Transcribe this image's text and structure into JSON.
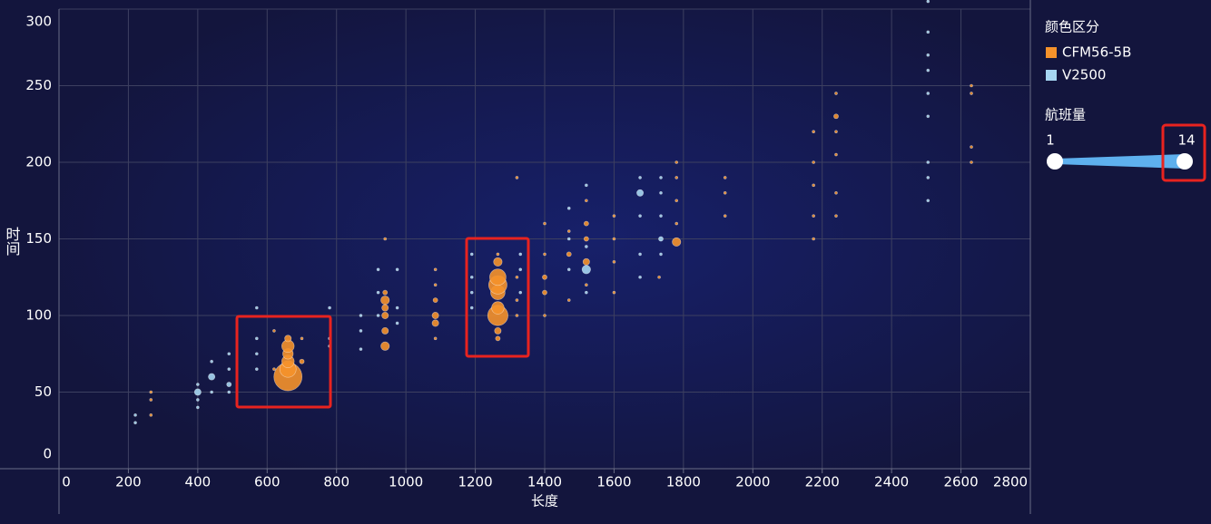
{
  "chart_data": {
    "type": "scatter",
    "x_label": "长度",
    "y_label": "时间",
    "xlim": [
      0,
      2800
    ],
    "xticks": [
      0,
      200,
      400,
      600,
      800,
      1000,
      1200,
      1400,
      1600,
      1800,
      2000,
      2200,
      2400,
      2600,
      2800
    ],
    "ylim": [
      0,
      300
    ],
    "yticks": [
      0,
      50,
      100,
      150,
      200,
      250,
      300
    ],
    "grid": true,
    "legend_title": "颜色区分",
    "visual_map": {
      "title": "航班量",
      "min": 1,
      "max": 14,
      "color": "#5eb0ee"
    },
    "series": [
      {
        "name": "CFM56-5B",
        "color": "#f5922b",
        "x": [
          265,
          265,
          265,
          660,
          660,
          660,
          660,
          660,
          660,
          700,
          700,
          620,
          620,
          940,
          940,
          940,
          940,
          940,
          940,
          940,
          1085,
          1085,
          1085,
          1085,
          1085,
          1085,
          1265,
          1265,
          1265,
          1265,
          1265,
          1265,
          1265,
          1265,
          1265,
          1320,
          1320,
          1320,
          1320,
          1400,
          1400,
          1400,
          1400,
          1400,
          1470,
          1470,
          1470,
          1520,
          1520,
          1520,
          1520,
          1520,
          1600,
          1600,
          1600,
          1600,
          1780,
          1780,
          1780,
          1780,
          1780,
          1730,
          1920,
          1920,
          1920,
          2175,
          2175,
          2175,
          2175,
          2175,
          2240,
          2240,
          2240,
          2240,
          2240,
          2240,
          2630,
          2630,
          2630,
          2630
        ],
        "values": [
          35,
          45,
          50,
          60,
          65,
          70,
          75,
          80,
          85,
          70,
          85,
          90,
          65,
          80,
          90,
          100,
          105,
          110,
          115,
          150,
          95,
          100,
          110,
          120,
          130,
          85,
          85,
          90,
          100,
          105,
          115,
          120,
          125,
          135,
          140,
          100,
          110,
          125,
          190,
          100,
          115,
          125,
          140,
          160,
          110,
          140,
          155,
          120,
          135,
          150,
          160,
          175,
          115,
          135,
          150,
          165,
          148,
          160,
          175,
          190,
          200,
          125,
          165,
          180,
          190,
          150,
          165,
          185,
          200,
          220,
          165,
          180,
          205,
          220,
          230,
          245,
          200,
          210,
          245,
          250
        ],
        "sizes": [
          1,
          1,
          1,
          14,
          8,
          6,
          5,
          6,
          3,
          2,
          1,
          1,
          1,
          4,
          3,
          3,
          3,
          4,
          2,
          1,
          3,
          3,
          2,
          1,
          1,
          1,
          2,
          3,
          10,
          6,
          7,
          9,
          8,
          4,
          1,
          1,
          1,
          1,
          1,
          1,
          2,
          2,
          1,
          1,
          1,
          2,
          1,
          1,
          3,
          2,
          2,
          1,
          1,
          1,
          1,
          1,
          4,
          1,
          1,
          1,
          1,
          1,
          1,
          1,
          1,
          1,
          1,
          1,
          1,
          1,
          1,
          1,
          1,
          1,
          2,
          1,
          1,
          1,
          1,
          1
        ]
      },
      {
        "name": "V2500",
        "color": "#a6d6f2",
        "x": [
          220,
          220,
          400,
          400,
          400,
          400,
          440,
          440,
          440,
          490,
          490,
          490,
          490,
          570,
          570,
          570,
          570,
          780,
          780,
          780,
          870,
          870,
          870,
          920,
          920,
          920,
          975,
          975,
          975,
          1190,
          1190,
          1190,
          1190,
          1330,
          1330,
          1330,
          1470,
          1470,
          1470,
          1520,
          1520,
          1520,
          1520,
          1675,
          1675,
          1675,
          1675,
          1675,
          1735,
          1735,
          1735,
          1735,
          1735,
          2505,
          2505,
          2505,
          2505,
          2505,
          2505,
          2505,
          2505,
          2505
        ],
        "values": [
          30,
          35,
          40,
          45,
          50,
          55,
          50,
          60,
          70,
          50,
          55,
          65,
          75,
          65,
          75,
          85,
          105,
          80,
          85,
          105,
          78,
          90,
          100,
          100,
          115,
          130,
          95,
          105,
          130,
          105,
          115,
          125,
          140,
          115,
          130,
          140,
          130,
          150,
          170,
          115,
          130,
          145,
          185,
          125,
          140,
          165,
          180,
          190,
          140,
          150,
          165,
          180,
          190,
          175,
          190,
          200,
          230,
          245,
          260,
          270,
          285,
          305
        ],
        "sizes": [
          1,
          1,
          1,
          1,
          3,
          1,
          1,
          3,
          1,
          1,
          2,
          1,
          1,
          1,
          1,
          1,
          1,
          1,
          1,
          1,
          1,
          1,
          1,
          1,
          1,
          1,
          1,
          1,
          1,
          1,
          1,
          1,
          1,
          1,
          1,
          1,
          1,
          1,
          1,
          1,
          4,
          1,
          1,
          1,
          1,
          1,
          3,
          1,
          1,
          2,
          1,
          1,
          1,
          1,
          1,
          1,
          1,
          1,
          1,
          1,
          1,
          1
        ]
      }
    ]
  }
}
